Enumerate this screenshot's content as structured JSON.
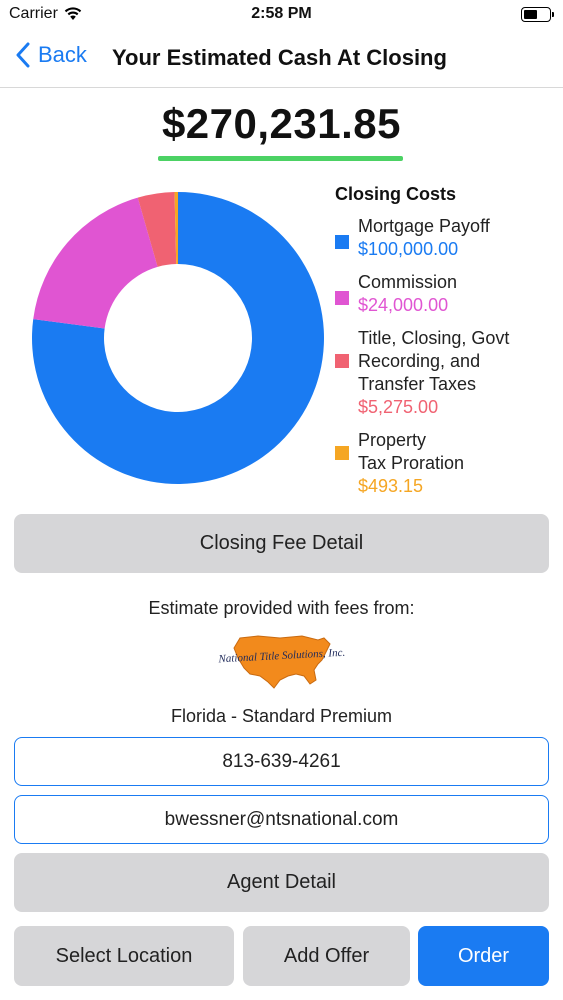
{
  "status_bar": {
    "carrier": "Carrier",
    "time": "2:58 PM"
  },
  "nav": {
    "back_label": "Back",
    "title": "Your Estimated Cash At Closing"
  },
  "summary": {
    "total": "$270,231.85",
    "underline_color": "#4cd264"
  },
  "chart_data": {
    "type": "pie",
    "title": "Closing Costs",
    "categories": [
      "Mortgage Payoff",
      "Commission",
      "Title, Closing, Govt Recording, and Transfer Taxes",
      "Property Tax Proration"
    ],
    "values": [
      100000.0,
      24000.0,
      5275.0,
      493.15
    ],
    "colors": [
      "#1a7bf2",
      "#e055d2",
      "#f06272",
      "#f5a623"
    ]
  },
  "legend": {
    "title": "Closing Costs",
    "items": [
      {
        "lines": [
          "Mortgage Payoff"
        ],
        "amount": "$100,000.00",
        "color": "#1a7bf2"
      },
      {
        "lines": [
          "Commission"
        ],
        "amount": "$24,000.00",
        "color": "#e055d2"
      },
      {
        "lines": [
          "Title, Closing, Govt",
          "Recording, and",
          "Transfer Taxes"
        ],
        "amount": "$5,275.00",
        "color": "#f06272"
      },
      {
        "lines": [
          "Property",
          "Tax Proration"
        ],
        "amount": "$493.15",
        "color": "#f5a623"
      }
    ]
  },
  "buttons": {
    "closing_fee_detail": "Closing Fee Detail",
    "agent_detail": "Agent Detail",
    "select_location": "Select Location",
    "add_offer": "Add Offer",
    "order": "Order"
  },
  "provider": {
    "intro": "Estimate provided with fees from:",
    "logo_text": "National Title Solutions, Inc.",
    "plan": "Florida - Standard Premium",
    "phone": "813-639-4261",
    "email": "bwessner@ntsnational.com"
  },
  "colors": {
    "accent": "#1a7bf2",
    "button_grey": "#d6d6d8"
  }
}
